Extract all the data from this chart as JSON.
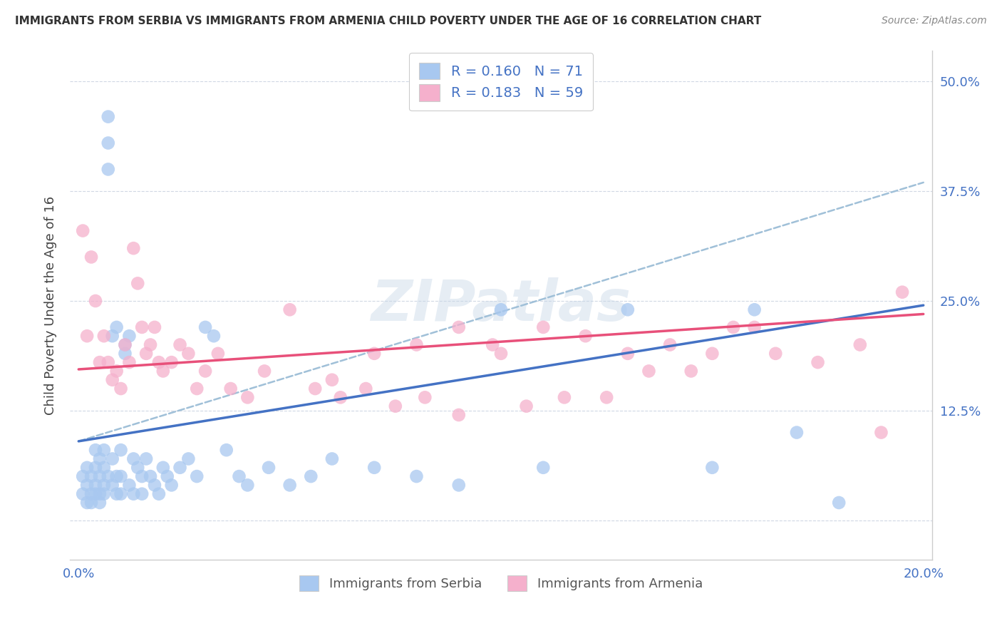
{
  "title": "IMMIGRANTS FROM SERBIA VS IMMIGRANTS FROM ARMENIA CHILD POVERTY UNDER THE AGE OF 16 CORRELATION CHART",
  "source": "Source: ZipAtlas.com",
  "ylabel": "Child Poverty Under the Age of 16",
  "xlim": [
    -0.002,
    0.202
  ],
  "ylim": [
    -0.045,
    0.535
  ],
  "xtick_vals": [
    0.0,
    0.05,
    0.1,
    0.15,
    0.2
  ],
  "xticklabels": [
    "0.0%",
    "",
    "",
    "",
    "20.0%"
  ],
  "ytick_vals": [
    0.0,
    0.125,
    0.25,
    0.375,
    0.5
  ],
  "yticklabels_right": [
    "",
    "12.5%",
    "25.0%",
    "37.5%",
    "50.0%"
  ],
  "serbia_color": "#a8c8f0",
  "armenia_color": "#f5b0cc",
  "serbia_line_color": "#4472c4",
  "armenia_line_color": "#e8507a",
  "dashed_line_color": "#a0c0d8",
  "R_serbia": 0.16,
  "N_serbia": 71,
  "R_armenia": 0.183,
  "N_armenia": 59,
  "legend_label_serbia": "Immigrants from Serbia",
  "legend_label_armenia": "Immigrants from Armenia",
  "watermark": "ZIPatlas",
  "serbia_reg": [
    0.09,
    0.245
  ],
  "armenia_reg": [
    0.172,
    0.235
  ],
  "dashed_reg": [
    0.09,
    0.385
  ],
  "serbia_x": [
    0.001,
    0.001,
    0.002,
    0.002,
    0.002,
    0.003,
    0.003,
    0.003,
    0.004,
    0.004,
    0.004,
    0.004,
    0.005,
    0.005,
    0.005,
    0.005,
    0.006,
    0.006,
    0.006,
    0.006,
    0.007,
    0.007,
    0.007,
    0.007,
    0.008,
    0.008,
    0.008,
    0.009,
    0.009,
    0.009,
    0.01,
    0.01,
    0.01,
    0.011,
    0.011,
    0.012,
    0.012,
    0.013,
    0.013,
    0.014,
    0.015,
    0.015,
    0.016,
    0.017,
    0.018,
    0.019,
    0.02,
    0.021,
    0.022,
    0.024,
    0.026,
    0.028,
    0.03,
    0.032,
    0.035,
    0.038,
    0.04,
    0.045,
    0.05,
    0.055,
    0.06,
    0.07,
    0.08,
    0.09,
    0.1,
    0.11,
    0.13,
    0.15,
    0.16,
    0.17,
    0.18
  ],
  "serbia_y": [
    0.05,
    0.03,
    0.04,
    0.02,
    0.06,
    0.03,
    0.05,
    0.02,
    0.04,
    0.03,
    0.06,
    0.08,
    0.05,
    0.03,
    0.07,
    0.02,
    0.06,
    0.04,
    0.08,
    0.03,
    0.46,
    0.43,
    0.4,
    0.05,
    0.21,
    0.07,
    0.04,
    0.22,
    0.05,
    0.03,
    0.08,
    0.05,
    0.03,
    0.2,
    0.19,
    0.21,
    0.04,
    0.07,
    0.03,
    0.06,
    0.05,
    0.03,
    0.07,
    0.05,
    0.04,
    0.03,
    0.06,
    0.05,
    0.04,
    0.06,
    0.07,
    0.05,
    0.22,
    0.21,
    0.08,
    0.05,
    0.04,
    0.06,
    0.04,
    0.05,
    0.07,
    0.06,
    0.05,
    0.04,
    0.24,
    0.06,
    0.24,
    0.06,
    0.24,
    0.1,
    0.02
  ],
  "armenia_x": [
    0.001,
    0.002,
    0.003,
    0.004,
    0.005,
    0.006,
    0.007,
    0.008,
    0.009,
    0.01,
    0.011,
    0.012,
    0.013,
    0.014,
    0.015,
    0.016,
    0.017,
    0.018,
    0.019,
    0.02,
    0.022,
    0.024,
    0.026,
    0.028,
    0.03,
    0.033,
    0.036,
    0.04,
    0.044,
    0.05,
    0.056,
    0.062,
    0.068,
    0.075,
    0.082,
    0.09,
    0.098,
    0.106,
    0.115,
    0.125,
    0.135,
    0.145,
    0.155,
    0.165,
    0.175,
    0.185,
    0.195,
    0.06,
    0.07,
    0.08,
    0.09,
    0.1,
    0.11,
    0.12,
    0.13,
    0.14,
    0.15,
    0.16,
    0.19
  ],
  "armenia_y": [
    0.33,
    0.21,
    0.3,
    0.25,
    0.18,
    0.21,
    0.18,
    0.16,
    0.17,
    0.15,
    0.2,
    0.18,
    0.31,
    0.27,
    0.22,
    0.19,
    0.2,
    0.22,
    0.18,
    0.17,
    0.18,
    0.2,
    0.19,
    0.15,
    0.17,
    0.19,
    0.15,
    0.14,
    0.17,
    0.24,
    0.15,
    0.14,
    0.15,
    0.13,
    0.14,
    0.22,
    0.2,
    0.13,
    0.14,
    0.14,
    0.17,
    0.17,
    0.22,
    0.19,
    0.18,
    0.2,
    0.26,
    0.16,
    0.19,
    0.2,
    0.12,
    0.19,
    0.22,
    0.21,
    0.19,
    0.2,
    0.19,
    0.22,
    0.1
  ]
}
